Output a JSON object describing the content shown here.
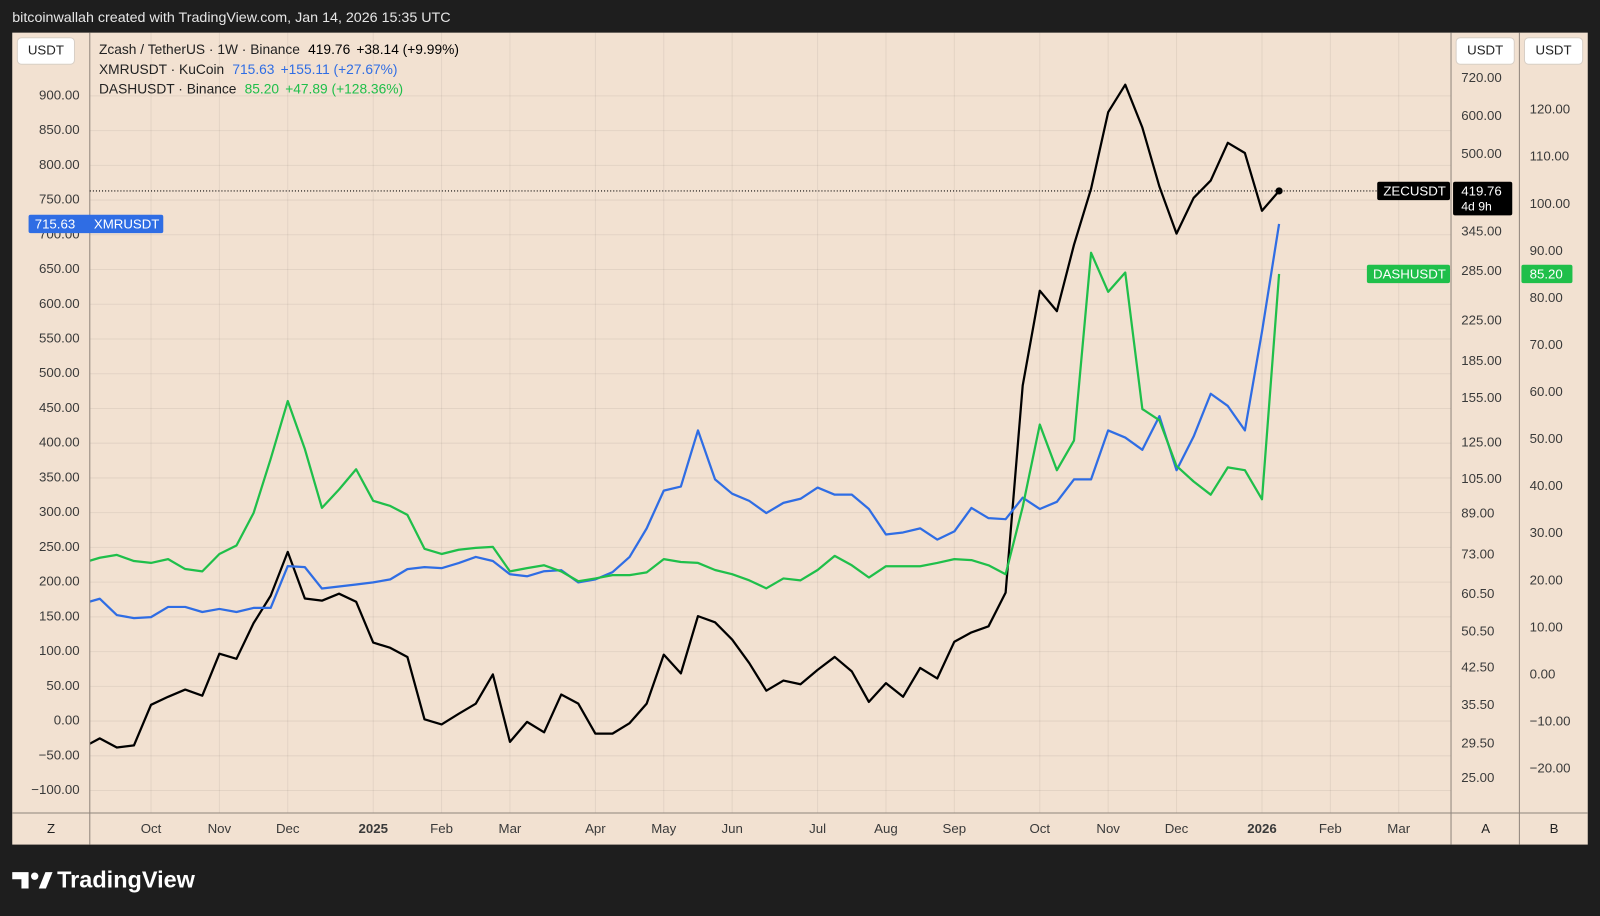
{
  "header": {
    "attribution": "bitcoinwallah created with TradingView.com, Jan 14, 2026 15:35 UTC"
  },
  "footer": {
    "logo": "TradingView"
  },
  "chart_data": {
    "type": "line",
    "grid": true,
    "y_unit": "USDT",
    "y2_unit": "USDT",
    "y3_unit": "USDT",
    "y_button": "Z",
    "y2_button": "A",
    "y3_button": "B",
    "categories": [
      null,
      null,
      null,
      null,
      "Oct",
      null,
      null,
      null,
      "Nov",
      null,
      null,
      null,
      "Dec",
      null,
      null,
      null,
      null,
      "2025",
      null,
      null,
      null,
      "Feb",
      null,
      null,
      null,
      "Mar",
      null,
      null,
      null,
      null,
      "Apr",
      null,
      null,
      null,
      "May",
      null,
      null,
      null,
      "Jun",
      null,
      null,
      null,
      null,
      "Jul",
      null,
      null,
      null,
      "Aug",
      null,
      null,
      null,
      "Sep",
      null,
      null,
      null,
      null,
      "Oct",
      null,
      null,
      null,
      "Nov",
      null,
      null,
      null,
      "Dec",
      null,
      null,
      null,
      null,
      "2026",
      null,
      null,
      null,
      "Feb",
      null,
      null,
      null,
      "Mar",
      null,
      null,
      null
    ],
    "ylim": [
      -132.3,
      991.0
    ],
    "yticks": [
      {
        "value": 900,
        "label": "900.00"
      },
      {
        "value": 850,
        "label": "850.00"
      },
      {
        "value": 800,
        "label": "800.00"
      },
      {
        "value": 750,
        "label": "750.00"
      },
      {
        "value": 700,
        "label": "700.00"
      },
      {
        "value": 650,
        "label": "650.00"
      },
      {
        "value": 600,
        "label": "600.00"
      },
      {
        "value": 550,
        "label": "550.00"
      },
      {
        "value": 500,
        "label": "500.00"
      },
      {
        "value": 450,
        "label": "450.00"
      },
      {
        "value": 400,
        "label": "400.00"
      },
      {
        "value": 350,
        "label": "350.00"
      },
      {
        "value": 300,
        "label": "300.00"
      },
      {
        "value": 250,
        "label": "250.00"
      },
      {
        "value": 200,
        "label": "200.00"
      },
      {
        "value": 150,
        "label": "150.00"
      },
      {
        "value": 100,
        "label": "100.00"
      },
      {
        "value": 50,
        "label": "50.00"
      },
      {
        "value": 0,
        "label": "0.00"
      },
      {
        "value": -50,
        "label": "−50.00"
      },
      {
        "value": -100,
        "label": "−100.00"
      }
    ],
    "y2lim": [
      21.18,
      897.6
    ],
    "y2log": true,
    "y2ticks": [
      {
        "value": 720,
        "label": "720.00"
      },
      {
        "value": 600,
        "label": "600.00"
      },
      {
        "value": 500,
        "label": "500.00"
      },
      {
        "value": 345,
        "label": "345.00"
      },
      {
        "value": 285,
        "label": "285.00"
      },
      {
        "value": 225,
        "label": "225.00"
      },
      {
        "value": 185,
        "label": "185.00"
      },
      {
        "value": 155,
        "label": "155.00"
      },
      {
        "value": 125,
        "label": "125.00"
      },
      {
        "value": 105,
        "label": "105.00"
      },
      {
        "value": 89,
        "label": "89.00"
      },
      {
        "value": 73,
        "label": "73.00"
      },
      {
        "value": 60.5,
        "label": "60.50"
      },
      {
        "value": 50.5,
        "label": "50.50"
      },
      {
        "value": 42.5,
        "label": "42.50"
      },
      {
        "value": 35.5,
        "label": "35.50"
      },
      {
        "value": 29.5,
        "label": "29.50"
      },
      {
        "value": 25,
        "label": "25.00"
      }
    ],
    "y3lim": [
      -29.33,
      136.47
    ],
    "y3ticks": [
      {
        "value": 120,
        "label": "120.00"
      },
      {
        "value": 110,
        "label": "110.00"
      },
      {
        "value": 100,
        "label": "100.00"
      },
      {
        "value": 90,
        "label": "90.00"
      },
      {
        "value": 80,
        "label": "80.00"
      },
      {
        "value": 70,
        "label": "70.00"
      },
      {
        "value": 60,
        "label": "60.00"
      },
      {
        "value": 50,
        "label": "50.00"
      },
      {
        "value": 40,
        "label": "40.00"
      },
      {
        "value": 30,
        "label": "30.00"
      },
      {
        "value": 20,
        "label": "20.00"
      },
      {
        "value": 10,
        "label": "10.00"
      },
      {
        "value": 0,
        "label": "0.00"
      },
      {
        "value": -10,
        "label": "−10.00"
      },
      {
        "value": -20,
        "label": "−20.00"
      }
    ],
    "series": [
      {
        "name": "Zcash / TetherUS · 1W · Binance",
        "tag": "ZECUSDT",
        "last_label": "419.76",
        "change": "+38.14 (+9.99%)",
        "countdown": "4d 9h",
        "price_line": true,
        "axis": "y2",
        "color": "#000000",
        "values": [
          29.0,
          30.3,
          29.0,
          29.3,
          35.6,
          37.0,
          38.3,
          37.2,
          45.5,
          44.4,
          52.7,
          60.1,
          74.2,
          59.3,
          58.7,
          60.7,
          58.4,
          48.0,
          46.8,
          44.8,
          33.2,
          32.4,
          34.1,
          35.8,
          41.2,
          29.8,
          32.8,
          31.2,
          37.4,
          35.8,
          31.0,
          31.0,
          32.6,
          35.8,
          45.3,
          41.4,
          54.5,
          52.9,
          48.7,
          43.5,
          38.1,
          40.0,
          39.3,
          42.1,
          44.8,
          41.8,
          36.1,
          39.5,
          37.0,
          42.5,
          40.4,
          48.2,
          50.4,
          51.9,
          61.0,
          164.9,
          260.0,
          235.7,
          324.1,
          424.3,
          612.6,
          699.1,
          569.2,
          428.5,
          342.0,
          405.9,
          441.2,
          528.9,
          503.6,
          381.62,
          419.76,
          null,
          null,
          null,
          null,
          null,
          null,
          null,
          null,
          null,
          null
        ]
      },
      {
        "name": "XMRUSDT · KuCoin",
        "tag": "XMRUSDT",
        "last_label": "715.63",
        "change": "+155.11 (+27.67%)",
        "axis": "y",
        "color": "#2f6de4",
        "values": [
          169,
          176.1,
          152.6,
          148.2,
          149.6,
          164.3,
          164.3,
          157.0,
          161.4,
          157.0,
          162.9,
          162.9,
          223.1,
          221.6,
          190.8,
          193.7,
          196.6,
          199.6,
          204.0,
          218.7,
          221.6,
          220.1,
          227.5,
          236.3,
          230.4,
          211.3,
          208.4,
          215.7,
          217.2,
          199.6,
          204.0,
          214.3,
          236.3,
          277.4,
          331.7,
          337.6,
          418.4,
          347.9,
          327.3,
          317.0,
          299.4,
          314.1,
          320.0,
          336.1,
          325.9,
          325.9,
          305.3,
          268.6,
          271.5,
          277.4,
          261.2,
          273.0,
          306.8,
          292.1,
          290.6,
          321.5,
          305.3,
          315.6,
          347.9,
          347.9,
          418.4,
          408.1,
          390.5,
          438.9,
          361.1,
          409.6,
          471.2,
          453.6,
          418.4,
          560.52,
          715.63,
          null,
          null,
          null,
          null,
          null,
          null,
          null,
          null,
          null,
          null
        ]
      },
      {
        "name": "DASHUSDT · Binance",
        "tag": "DASHUSDT",
        "last_label": "85.20",
        "change": "+47.89 (+128.36%)",
        "axis": "y3",
        "color": "#1fbf4a",
        "values": [
          23.8,
          24.9,
          25.5,
          24.2,
          23.8,
          24.6,
          22.5,
          22.0,
          25.7,
          27.5,
          34.4,
          45.9,
          58.2,
          48.0,
          35.5,
          39.4,
          43.7,
          37.0,
          35.9,
          34.0,
          26.8,
          25.7,
          26.6,
          27.0,
          27.2,
          22.0,
          22.7,
          23.3,
          22.0,
          19.9,
          20.5,
          21.2,
          21.2,
          21.8,
          24.6,
          24.0,
          23.8,
          22.3,
          21.4,
          20.1,
          18.4,
          20.5,
          20.1,
          22.3,
          25.3,
          23.3,
          20.7,
          23.1,
          23.1,
          23.1,
          23.8,
          24.6,
          24.4,
          23.3,
          21.4,
          35.7,
          53.2,
          43.5,
          49.8,
          89.7,
          81.4,
          85.5,
          56.5,
          54.1,
          44.4,
          41.1,
          38.3,
          44.1,
          43.5,
          37.31,
          85.2,
          null,
          null,
          null,
          null,
          null,
          null,
          null,
          null,
          null,
          null
        ]
      }
    ]
  }
}
